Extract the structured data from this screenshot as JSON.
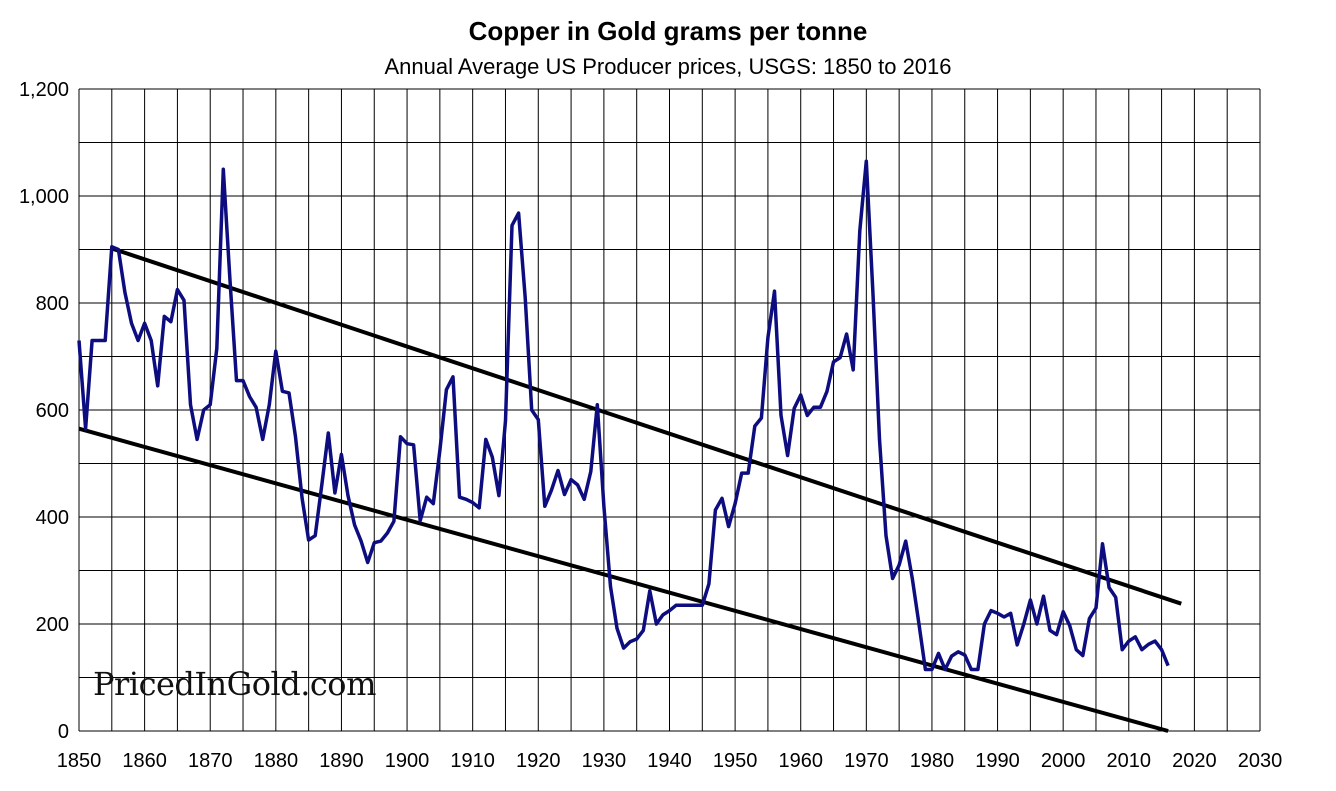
{
  "chart_data": {
    "type": "line",
    "title": "Copper in Gold grams per tonne",
    "subtitle": "Annual Average US Producer prices, USGS: 1850 to 2016",
    "watermark": "PricedInGold.com",
    "xlim": [
      1850,
      2030
    ],
    "ylim": [
      0,
      1200
    ],
    "x_ticks": [
      1850,
      1860,
      1870,
      1880,
      1890,
      1900,
      1910,
      1920,
      1930,
      1940,
      1950,
      1960,
      1970,
      1980,
      1990,
      2000,
      2010,
      2020,
      2030
    ],
    "x_tick_labels": [
      "1850",
      "1860",
      "1870",
      "1880",
      "1890",
      "1900",
      "1910",
      "1920",
      "1930",
      "1940",
      "1950",
      "1960",
      "1970",
      "1980",
      "1990",
      "2000",
      "2010",
      "2020",
      "2030"
    ],
    "y_ticks": [
      0,
      200,
      400,
      600,
      800,
      1000,
      1200
    ],
    "y_tick_labels": [
      "0",
      "200",
      "400",
      "600",
      "800",
      "1,000",
      "1,200"
    ],
    "grid": true,
    "colors": {
      "series": "#0d0d80",
      "trend": "#000000",
      "grid": "#000000"
    },
    "series": [
      {
        "x": [
          1850,
          1851,
          1852,
          1853,
          1854,
          1855,
          1856,
          1857,
          1858,
          1859,
          1860,
          1861,
          1862,
          1863,
          1864,
          1865,
          1866,
          1867,
          1868,
          1869,
          1870,
          1871,
          1872,
          1873,
          1874,
          1875,
          1876,
          1877,
          1878,
          1879,
          1880,
          1881,
          1882,
          1883,
          1884,
          1885,
          1886,
          1887,
          1888,
          1889,
          1890,
          1891,
          1892,
          1893,
          1894,
          1895,
          1896,
          1897,
          1898,
          1899,
          1900,
          1901,
          1902,
          1903,
          1904,
          1905,
          1906,
          1907,
          1908,
          1909,
          1910,
          1911,
          1912,
          1913,
          1914,
          1915,
          1916,
          1917,
          1918,
          1919,
          1920,
          1921,
          1922,
          1923,
          1924,
          1925,
          1926,
          1927,
          1928,
          1929,
          1930,
          1931,
          1932,
          1933,
          1934,
          1935,
          1936,
          1937,
          1938,
          1939,
          1940,
          1941,
          1942,
          1943,
          1944,
          1945,
          1946,
          1947,
          1948,
          1949,
          1950,
          1951,
          1952,
          1953,
          1954,
          1955,
          1956,
          1957,
          1958,
          1959,
          1960,
          1961,
          1962,
          1963,
          1964,
          1965,
          1966,
          1967,
          1968,
          1969,
          1970,
          1971,
          1972,
          1973,
          1974,
          1975,
          1976,
          1977,
          1978,
          1979,
          1980,
          1981,
          1982,
          1983,
          1984,
          1985,
          1986,
          1987,
          1988,
          1989,
          1990,
          1991,
          1992,
          1993,
          1994,
          1995,
          1996,
          1997,
          1998,
          1999,
          2000,
          2001,
          2002,
          2003,
          2004,
          2005,
          2006,
          2007,
          2008,
          2009,
          2010,
          2011,
          2012,
          2013,
          2014,
          2015,
          2016
        ],
        "y": [
          730,
          565,
          730,
          730,
          730,
          905,
          900,
          820,
          762,
          730,
          762,
          730,
          645,
          775,
          765,
          825,
          805,
          610,
          545,
          600,
          610,
          715,
          1050,
          845,
          655,
          655,
          625,
          605,
          545,
          610,
          710,
          635,
          632,
          550,
          435,
          357,
          365,
          460,
          557,
          445,
          517,
          440,
          385,
          355,
          315,
          352,
          355,
          370,
          392,
          550,
          537,
          535,
          393,
          437,
          425,
          525,
          638,
          662,
          437,
          433,
          427,
          417,
          545,
          512,
          440,
          580,
          945,
          968,
          810,
          600,
          582,
          420,
          450,
          487,
          442,
          470,
          460,
          433,
          485,
          610,
          420,
          270,
          192,
          155,
          167,
          172,
          188,
          262,
          200,
          217,
          225,
          235,
          235,
          235,
          235,
          235,
          275,
          413,
          435,
          382,
          425,
          482,
          482,
          570,
          585,
          735,
          822,
          590,
          515,
          603,
          628,
          590,
          605,
          605,
          635,
          690,
          698,
          742,
          675,
          935,
          1065,
          820,
          545,
          365,
          285,
          310,
          355,
          285,
          202,
          115,
          115,
          145,
          115,
          140,
          148,
          142,
          115,
          115,
          200,
          225,
          220,
          213,
          220,
          161,
          200,
          245,
          200,
          252,
          188,
          180,
          223,
          197,
          152,
          141,
          210,
          230,
          350,
          268,
          250,
          152,
          168,
          176,
          152,
          162,
          168,
          152,
          122
        ]
      }
    ],
    "trend_lines": [
      {
        "x": [
          1855,
          2018
        ],
        "y": [
          902,
          238
        ]
      },
      {
        "x": [
          1850,
          2016
        ],
        "y": [
          565,
          0
        ]
      }
    ]
  }
}
